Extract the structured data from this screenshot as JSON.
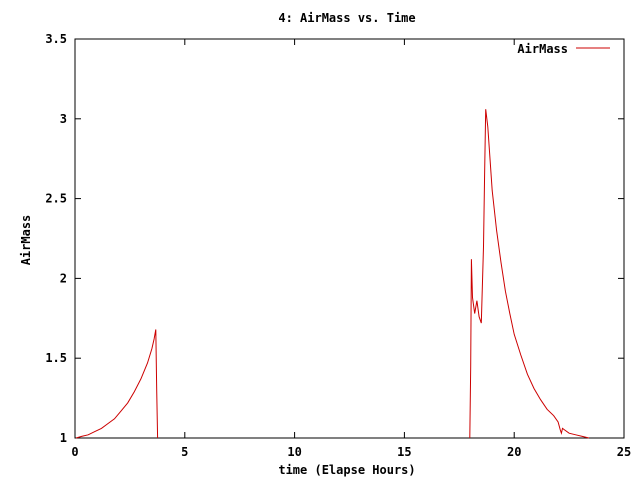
{
  "chart_data": {
    "type": "line",
    "title": "4: AirMass vs. Time",
    "xlabel": "time (Elapse Hours)",
    "ylabel": "AirMass",
    "xlim": [
      0,
      25
    ],
    "ylim": [
      1,
      3.5
    ],
    "x_ticks": [
      0,
      5,
      10,
      15,
      20,
      25
    ],
    "y_ticks": [
      1,
      1.5,
      2,
      2.5,
      3,
      3.5
    ],
    "x_tick_labels": [
      "0",
      "5",
      "10",
      "15",
      "20",
      "25"
    ],
    "y_tick_labels": [
      "1",
      "1.5",
      "2",
      "2.5",
      "3",
      "3.5"
    ],
    "grid": false,
    "legend_position": "top-right",
    "series": [
      {
        "name": "AirMass",
        "color": "#cc0000",
        "segments": [
          {
            "x": [
              0.05,
              0.3,
              0.6,
              0.9,
              1.2,
              1.5,
              1.8,
              2.1,
              2.4,
              2.7,
              3.0,
              3.3,
              3.5,
              3.6,
              3.68,
              3.72,
              3.76
            ],
            "y": [
              1.0,
              1.01,
              1.02,
              1.04,
              1.06,
              1.09,
              1.12,
              1.17,
              1.22,
              1.29,
              1.37,
              1.47,
              1.56,
              1.62,
              1.68,
              1.3,
              1.0
            ]
          },
          {
            "x": [
              17.98,
              18.02,
              18.05,
              18.1,
              18.2,
              18.3,
              18.4,
              18.5,
              18.6,
              18.65,
              18.7,
              18.8,
              18.9,
              19.0,
              19.2,
              19.4,
              19.6,
              19.8,
              20.0,
              20.3,
              20.6,
              20.9,
              21.2,
              21.5,
              21.8,
              22.0,
              22.1,
              22.15,
              22.2,
              22.3,
              22.5,
              22.8,
              23.1,
              23.4
            ],
            "y": [
              1.0,
              1.45,
              2.12,
              1.88,
              1.78,
              1.86,
              1.76,
              1.72,
              2.2,
              2.65,
              3.06,
              2.95,
              2.75,
              2.55,
              2.3,
              2.1,
              1.92,
              1.78,
              1.65,
              1.52,
              1.4,
              1.31,
              1.24,
              1.18,
              1.14,
              1.1,
              1.05,
              1.03,
              1.06,
              1.05,
              1.03,
              1.02,
              1.01,
              1.0
            ]
          }
        ]
      }
    ]
  }
}
